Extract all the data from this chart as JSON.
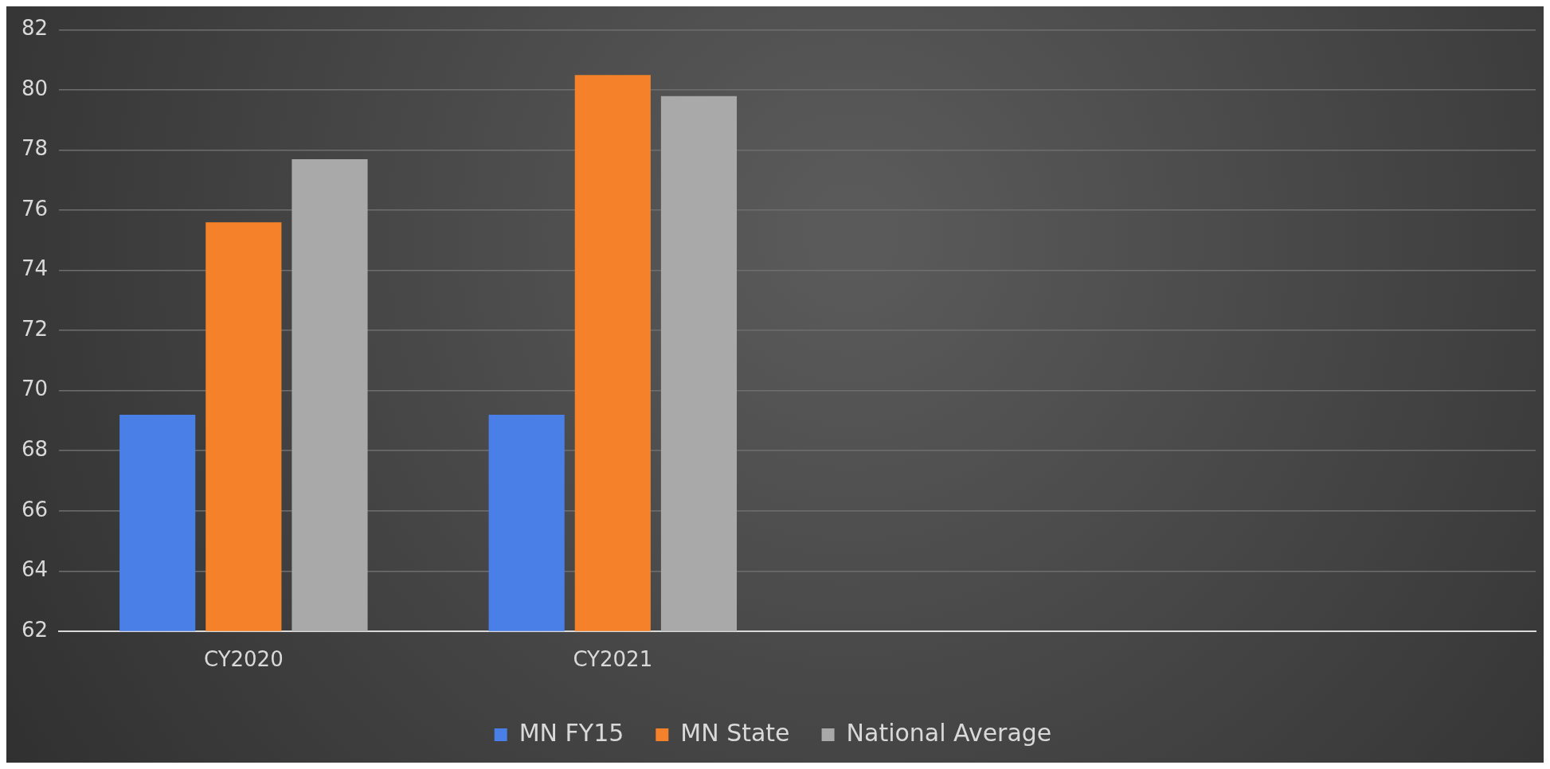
{
  "chart_data": {
    "type": "bar",
    "categories": [
      "CY2020",
      "CY2021",
      null,
      null
    ],
    "series": [
      {
        "name": "MN FY15",
        "color": "#4a7fe8",
        "values": [
          69.2,
          69.2,
          null,
          null
        ]
      },
      {
        "name": "MN State",
        "color": "#f5822a",
        "values": [
          75.6,
          80.5,
          null,
          null
        ]
      },
      {
        "name": "National Average",
        "color": "#a9a9a9",
        "values": [
          77.7,
          79.8,
          null,
          null
        ]
      }
    ],
    "ylim": [
      62,
      82
    ],
    "yticks": [
      62,
      64,
      66,
      68,
      70,
      72,
      74,
      76,
      78,
      80,
      82
    ],
    "grid": "y",
    "legend": "bottom"
  }
}
